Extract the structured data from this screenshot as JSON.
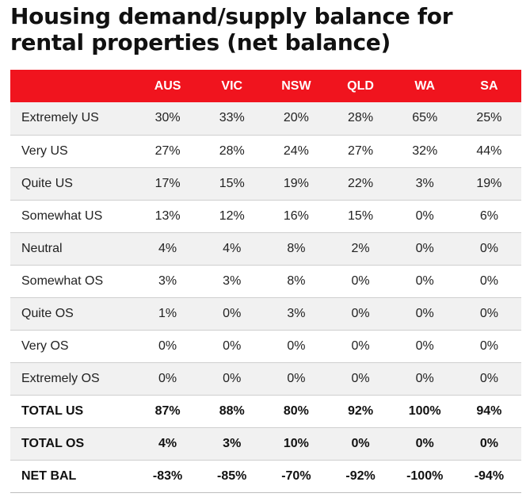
{
  "title": "Housing demand/supply balance for rental properties (net balance)",
  "colors": {
    "header_background": "#f0141e",
    "header_text": "#ffffff",
    "shaded_row": "#f1f1f1"
  },
  "table": {
    "columns": [
      "AUS",
      "VIC",
      "NSW",
      "QLD",
      "WA",
      "SA"
    ],
    "rows": [
      {
        "label": "Extremely US",
        "values": [
          "30%",
          "33%",
          "20%",
          "28%",
          "65%",
          "25%"
        ]
      },
      {
        "label": "Very US",
        "values": [
          "27%",
          "28%",
          "24%",
          "27%",
          "32%",
          "44%"
        ]
      },
      {
        "label": "Quite US",
        "values": [
          "17%",
          "15%",
          "19%",
          "22%",
          "3%",
          "19%"
        ]
      },
      {
        "label": "Somewhat US",
        "values": [
          "13%",
          "12%",
          "16%",
          "15%",
          "0%",
          "6%"
        ]
      },
      {
        "label": "Neutral",
        "values": [
          "4%",
          "4%",
          "8%",
          "2%",
          "0%",
          "0%"
        ]
      },
      {
        "label": "Somewhat OS",
        "values": [
          "3%",
          "3%",
          "8%",
          "0%",
          "0%",
          "0%"
        ]
      },
      {
        "label": "Quite OS",
        "values": [
          "1%",
          "0%",
          "3%",
          "0%",
          "0%",
          "0%"
        ]
      },
      {
        "label": "Very OS",
        "values": [
          "0%",
          "0%",
          "0%",
          "0%",
          "0%",
          "0%"
        ]
      },
      {
        "label": "Extremely OS",
        "values": [
          "0%",
          "0%",
          "0%",
          "0%",
          "0%",
          "0%"
        ]
      },
      {
        "label": "TOTAL US",
        "values": [
          "87%",
          "88%",
          "80%",
          "92%",
          "100%",
          "94%"
        ]
      },
      {
        "label": "TOTAL OS",
        "values": [
          "4%",
          "3%",
          "10%",
          "0%",
          "0%",
          "0%"
        ]
      },
      {
        "label": "NET BAL",
        "values": [
          "-83%",
          "-85%",
          "-70%",
          "-92%",
          "-100%",
          "-94%"
        ]
      }
    ]
  }
}
